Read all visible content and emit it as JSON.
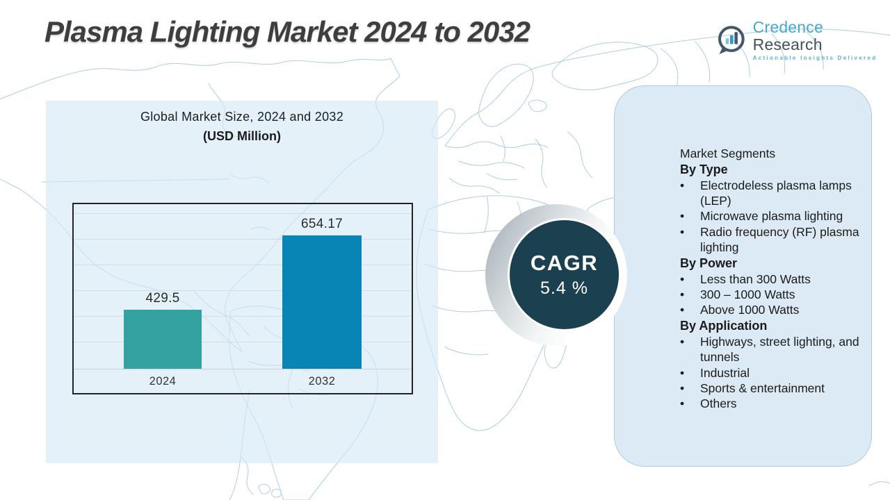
{
  "title": "Plasma Lighting Market 2024 to 2032",
  "logo": {
    "name_primary": "Credence",
    "name_secondary": "Research",
    "tagline": "Actionable Insights Delivered"
  },
  "chart": {
    "title_line1": "Global Market Size, 2024 and 2032",
    "title_line2": "(USD Million)"
  },
  "chart_data": {
    "type": "bar",
    "title": "Global Market Size, 2024 and 2032 (USD Million)",
    "categories": [
      "2024",
      "2032"
    ],
    "values": [
      429.5,
      654.17
    ],
    "value_labels": [
      "429.5",
      "654.17"
    ],
    "ylim": [
      250,
      750
    ],
    "grid": true,
    "legend": "none",
    "bar_colors": [
      "#35a2a2",
      "#0884b5"
    ]
  },
  "cagr": {
    "label": "CAGR",
    "value": "5.4 %"
  },
  "segments": {
    "heading": "Market Segments",
    "groups": [
      {
        "title": "By Type",
        "items": [
          "Electrodeless plasma lamps (LEP)",
          "Microwave plasma lighting",
          "Radio frequency (RF) plasma lighting"
        ]
      },
      {
        "title": "By Power",
        "items": [
          "Less than 300 Watts",
          "300 – 1000 Watts",
          "Above 1000 Watts"
        ]
      },
      {
        "title": "By Application",
        "items": [
          "Highways, street lighting, and tunnels",
          "Industrial",
          "Sports & entertainment",
          "Others"
        ]
      }
    ]
  },
  "colors": {
    "bar_2024": "#35a2a2",
    "bar_2032": "#0884b5",
    "cagr_circle": "#1b4150",
    "right_panel": "#dbeaf5",
    "map_lines": "#9cc6db",
    "title_text": "#3e3e3e",
    "logo_blue": "#47a8cf",
    "logo_dark": "#41525e"
  }
}
